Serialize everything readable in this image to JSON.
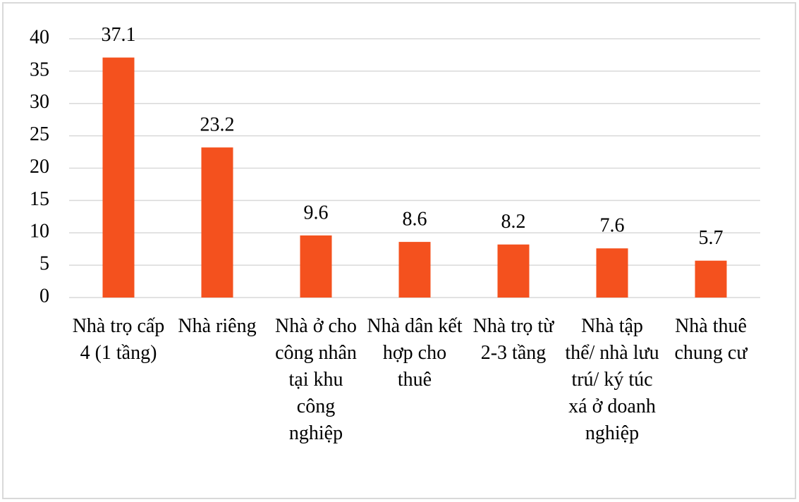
{
  "chart_data": {
    "type": "bar",
    "categories": [
      "Nhà trọ cấp 4 (1 tầng)",
      "Nhà riêng",
      "Nhà ở cho công nhân tại khu công nghiệp",
      "Nhà dân kết hợp cho thuê",
      "Nhà trọ từ 2-3 tầng",
      "Nhà tập thể/ nhà lưu trú/ ký túc xá ở doanh nghiệp",
      "Nhà thuê chung cư"
    ],
    "values": [
      37.1,
      23.2,
      9.6,
      8.6,
      8.2,
      7.6,
      5.7
    ],
    "color": "#f4511e",
    "ylim": [
      0,
      40
    ],
    "yticks": [
      0,
      5,
      10,
      15,
      20,
      25,
      30,
      35,
      40
    ],
    "grid": true
  }
}
